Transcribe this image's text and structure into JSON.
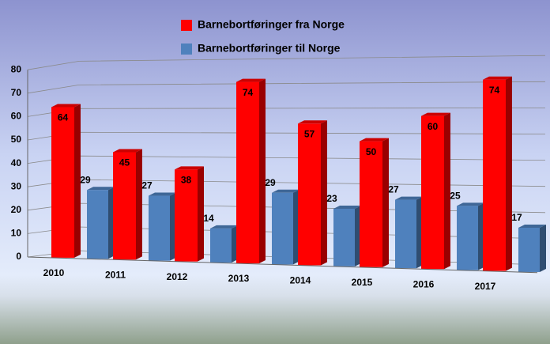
{
  "chart_data": {
    "type": "bar",
    "categories": [
      "2010",
      "2011",
      "2012",
      "2013",
      "2014",
      "2015",
      "2016",
      "2017"
    ],
    "series": [
      {
        "name": "Barnebortføringer fra Norge",
        "color": "#ff0000",
        "values": [
          64,
          45,
          38,
          74,
          57,
          50,
          60,
          74
        ]
      },
      {
        "name": "Barnebortføringer til Norge",
        "color": "#4f81bd",
        "values": [
          29,
          27,
          14,
          29,
          23,
          27,
          25,
          17
        ]
      }
    ],
    "ylim": [
      0,
      80
    ],
    "yticks": [
      0,
      10,
      20,
      30,
      40,
      50,
      60,
      70,
      80
    ],
    "grid": true,
    "legend": "top"
  }
}
